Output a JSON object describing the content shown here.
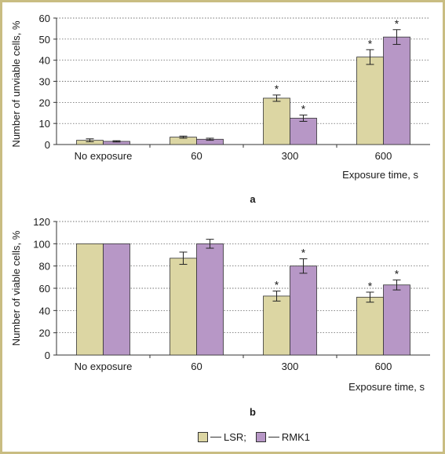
{
  "colors": {
    "lsr": "#dcd6a3",
    "rmk1": "#b797c6",
    "border": "#c9bd82"
  },
  "legend": {
    "lsr": "LSR;",
    "rmk1": "RMK1"
  },
  "chart_data": [
    {
      "type": "bar",
      "panel_label": "a",
      "ylabel": "Number of unviable cells, %",
      "xlabel": "Exposure time, s",
      "categories": [
        "No exposure",
        "60",
        "300",
        "600"
      ],
      "ylim": [
        0,
        60
      ],
      "yticks": [
        0,
        10,
        20,
        30,
        40,
        50,
        60
      ],
      "grid": "dashed-horizontal",
      "series": [
        {
          "name": "LSR",
          "values": [
            2,
            3.5,
            22,
            41.5
          ],
          "errors": [
            0.7,
            0.5,
            1.5,
            3.5
          ],
          "significant": [
            false,
            false,
            true,
            true
          ]
        },
        {
          "name": "RMK1",
          "values": [
            1.5,
            2.5,
            12.5,
            51
          ],
          "errors": [
            0.3,
            0.5,
            1.5,
            3.5
          ],
          "significant": [
            false,
            false,
            true,
            true
          ]
        }
      ],
      "annotation": "*"
    },
    {
      "type": "bar",
      "panel_label": "b",
      "ylabel": "Number of viable cells, %",
      "xlabel": "Exposure time, s",
      "categories": [
        "No exposure",
        "60",
        "300",
        "600"
      ],
      "ylim": [
        0,
        120
      ],
      "yticks": [
        0,
        20,
        40,
        60,
        80,
        100,
        120
      ],
      "grid": "dashed-horizontal",
      "series": [
        {
          "name": "LSR",
          "values": [
            100,
            87,
            53,
            52
          ],
          "errors": [
            0,
            5.5,
            4.5,
            4.5
          ],
          "significant": [
            false,
            false,
            true,
            true
          ]
        },
        {
          "name": "RMK1",
          "values": [
            100,
            100,
            80,
            63
          ],
          "errors": [
            0,
            4,
            6.5,
            4.5
          ],
          "significant": [
            false,
            false,
            true,
            true
          ]
        }
      ],
      "annotation": "*"
    }
  ]
}
